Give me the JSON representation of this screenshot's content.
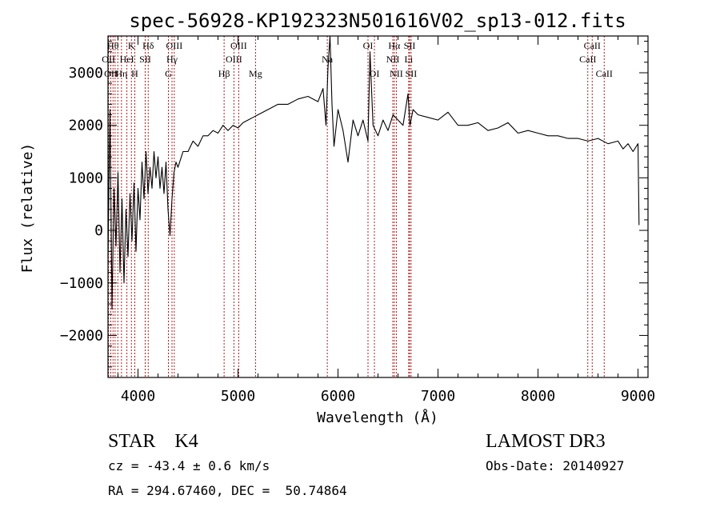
{
  "chart_data": {
    "type": "line",
    "title": "spec-56928-KP192323N501616V02_sp13-012.fits",
    "xlabel": "Wavelength (Å)",
    "ylabel": "Flux (relative)",
    "xlim": [
      3700,
      9100
    ],
    "ylim": [
      -2800,
      3700
    ],
    "xticks": [
      4000,
      5000,
      6000,
      7000,
      8000,
      9000
    ],
    "yticks": [
      -2000,
      -1000,
      0,
      1000,
      2000,
      3000
    ],
    "grid": false,
    "series": [
      {
        "x": [
          3700,
          3720,
          3740,
          3760,
          3780,
          3800,
          3820,
          3840,
          3860,
          3880,
          3900,
          3920,
          3940,
          3960,
          3980,
          4000,
          4020,
          4040,
          4060,
          4080,
          4100,
          4120,
          4140,
          4160,
          4180,
          4200,
          4220,
          4240,
          4260,
          4280,
          4300,
          4320,
          4340,
          4360,
          4380,
          4400,
          4450,
          4500,
          4550,
          4600,
          4650,
          4700,
          4750,
          4800,
          4850,
          4900,
          4950,
          5000,
          5050,
          5100,
          5150,
          5200,
          5300,
          5400,
          5500,
          5600,
          5700,
          5800,
          5850,
          5880,
          5900,
          5920,
          5940,
          5960,
          6000,
          6050,
          6100,
          6150,
          6200,
          6250,
          6300,
          6320,
          6350,
          6400,
          6450,
          6500,
          6550,
          6600,
          6650,
          6700,
          6720,
          6750,
          6800,
          6900,
          7000,
          7100,
          7200,
          7300,
          7400,
          7500,
          7600,
          7700,
          7800,
          7900,
          8000,
          8100,
          8200,
          8300,
          8400,
          8500,
          8600,
          8700,
          8800,
          8850,
          8900,
          8950,
          9000,
          9010
        ],
        "values": [
          -500,
          2300,
          -1500,
          800,
          -300,
          1100,
          -800,
          600,
          -1000,
          400,
          -500,
          700,
          -200,
          900,
          -400,
          800,
          200,
          1300,
          600,
          1500,
          700,
          1200,
          800,
          1500,
          1000,
          1400,
          800,
          1200,
          700,
          1300,
          400,
          -100,
          600,
          1100,
          1300,
          1200,
          1500,
          1500,
          1700,
          1600,
          1800,
          1800,
          1900,
          1850,
          2000,
          1900,
          2000,
          1950,
          2050,
          2100,
          2150,
          2200,
          2300,
          2400,
          2400,
          2500,
          2550,
          2450,
          2700,
          2000,
          3100,
          3700,
          2400,
          1600,
          2300,
          1900,
          1300,
          2100,
          1800,
          2100,
          1700,
          3400,
          2000,
          1800,
          2100,
          1900,
          2200,
          2100,
          2000,
          2600,
          2000,
          2300,
          2200,
          2150,
          2100,
          2250,
          2000,
          2000,
          2050,
          1900,
          1950,
          2050,
          1850,
          1900,
          1850,
          1800,
          1800,
          1750,
          1750,
          1700,
          1750,
          1650,
          1700,
          1550,
          1650,
          1500,
          1650,
          100
        ]
      }
    ],
    "lines": [
      {
        "wl": 3705,
        "label": "OII",
        "row": 1
      },
      {
        "wl": 3728,
        "label": "OII",
        "row": 2
      },
      {
        "wl": 3750,
        "label": "Hθ",
        "row": 0
      },
      {
        "wl": 3771,
        "label": "",
        "row": -1
      },
      {
        "wl": 3798,
        "label": "",
        "row": -1
      },
      {
        "wl": 3835,
        "label": "Hη",
        "row": 2
      },
      {
        "wl": 3889,
        "label": "HeI",
        "row": 1
      },
      {
        "wl": 3934,
        "label": "K",
        "row": 0
      },
      {
        "wl": 3968,
        "label": "H",
        "row": 2
      },
      {
        "wl": 4072,
        "label": "SII",
        "row": 1
      },
      {
        "wl": 4102,
        "label": "Hδ",
        "row": 0
      },
      {
        "wl": 4304,
        "label": "G",
        "row": 2
      },
      {
        "wl": 4340,
        "label": "Hγ",
        "row": 1
      },
      {
        "wl": 4363,
        "label": "OIII",
        "row": 0
      },
      {
        "wl": 4861,
        "label": "Hβ",
        "row": 2
      },
      {
        "wl": 4959,
        "label": "OIII",
        "row": 1
      },
      {
        "wl": 5007,
        "label": "OIII",
        "row": 0
      },
      {
        "wl": 5175,
        "label": "Mg",
        "row": 2
      },
      {
        "wl": 5893,
        "label": "Na",
        "row": 1
      },
      {
        "wl": 6300,
        "label": "OI",
        "row": 0
      },
      {
        "wl": 6364,
        "label": "OI",
        "row": 2
      },
      {
        "wl": 6548,
        "label": "NII",
        "row": 1
      },
      {
        "wl": 6563,
        "label": "Hα",
        "row": 0
      },
      {
        "wl": 6583,
        "label": "NII",
        "row": 2
      },
      {
        "wl": 6707,
        "label": "Li",
        "row": 1
      },
      {
        "wl": 6716,
        "label": "SII",
        "row": 0
      },
      {
        "wl": 6731,
        "label": "SII",
        "row": 2
      },
      {
        "wl": 8498,
        "label": "CaII",
        "row": 1
      },
      {
        "wl": 8542,
        "label": "CaII",
        "row": 0
      },
      {
        "wl": 8662,
        "label": "CaII",
        "row": 2
      }
    ]
  },
  "info": {
    "class_text": "STAR    K4",
    "cz_text": "cz = -43.4 ± 0.6 km/s",
    "radec_text": "RA = 294.67460, DEC =  50.74864",
    "survey_text": "LAMOST DR3",
    "obsdate_text": "Obs-Date: 20140927"
  },
  "colors": {
    "line_marker": "#b00000",
    "spectrum": "#000000"
  }
}
